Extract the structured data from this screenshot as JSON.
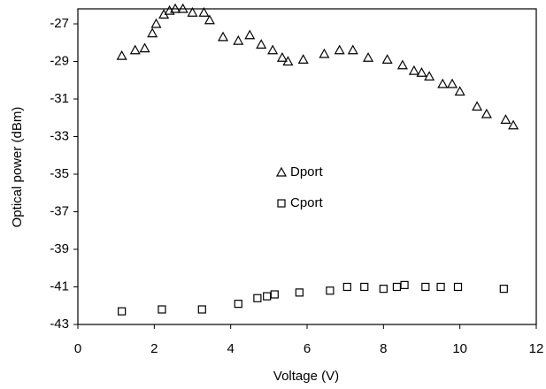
{
  "chart_data": {
    "type": "scatter",
    "xlabel": "Voltage (V)",
    "ylabel": "Optical power (dBm)",
    "xlim": [
      0,
      12
    ],
    "xticks": [
      0,
      2,
      4,
      6,
      8,
      10,
      12
    ],
    "ylim": [
      -43,
      -26.2
    ],
    "yticks": [
      -27,
      -29,
      -31,
      -33,
      -35,
      -37,
      -39,
      -41,
      -43
    ],
    "legend": "center",
    "series": [
      {
        "name": "Dport",
        "color": "#000000",
        "marker": "triangle",
        "x": [
          1.15,
          1.5,
          1.75,
          1.95,
          2.05,
          2.25,
          2.4,
          2.55,
          2.75,
          3.0,
          3.3,
          3.45,
          3.8,
          4.2,
          4.5,
          4.8,
          5.1,
          5.35,
          5.5,
          5.9,
          6.45,
          6.85,
          7.2,
          7.6,
          8.1,
          8.5,
          8.8,
          9.0,
          9.2,
          9.55,
          9.8,
          10.0,
          10.45,
          10.7,
          11.2,
          11.4
        ],
        "values": [
          -28.7,
          -28.4,
          -28.3,
          -27.5,
          -27.0,
          -26.5,
          -26.3,
          -26.2,
          -26.2,
          -26.4,
          -26.4,
          -26.8,
          -27.7,
          -27.9,
          -27.6,
          -28.1,
          -28.4,
          -28.8,
          -29.0,
          -28.9,
          -28.6,
          -28.4,
          -28.4,
          -28.8,
          -28.9,
          -29.2,
          -29.5,
          -29.6,
          -29.8,
          -30.2,
          -30.2,
          -30.6,
          -31.4,
          -31.8,
          -32.1,
          -32.4
        ]
      },
      {
        "name": "Cport",
        "color": "#000000",
        "marker": "square",
        "x": [
          1.15,
          2.2,
          3.25,
          4.2,
          4.7,
          4.95,
          5.15,
          5.8,
          6.6,
          7.05,
          7.5,
          8.0,
          8.35,
          8.55,
          9.1,
          9.5,
          9.95,
          11.15
        ],
        "values": [
          -42.3,
          -42.2,
          -42.2,
          -41.9,
          -41.6,
          -41.5,
          -41.4,
          -41.3,
          -41.2,
          -41.0,
          -41.0,
          -41.1,
          -41.0,
          -40.9,
          -41.0,
          -41.0,
          -41.0,
          -41.1
        ]
      }
    ]
  }
}
